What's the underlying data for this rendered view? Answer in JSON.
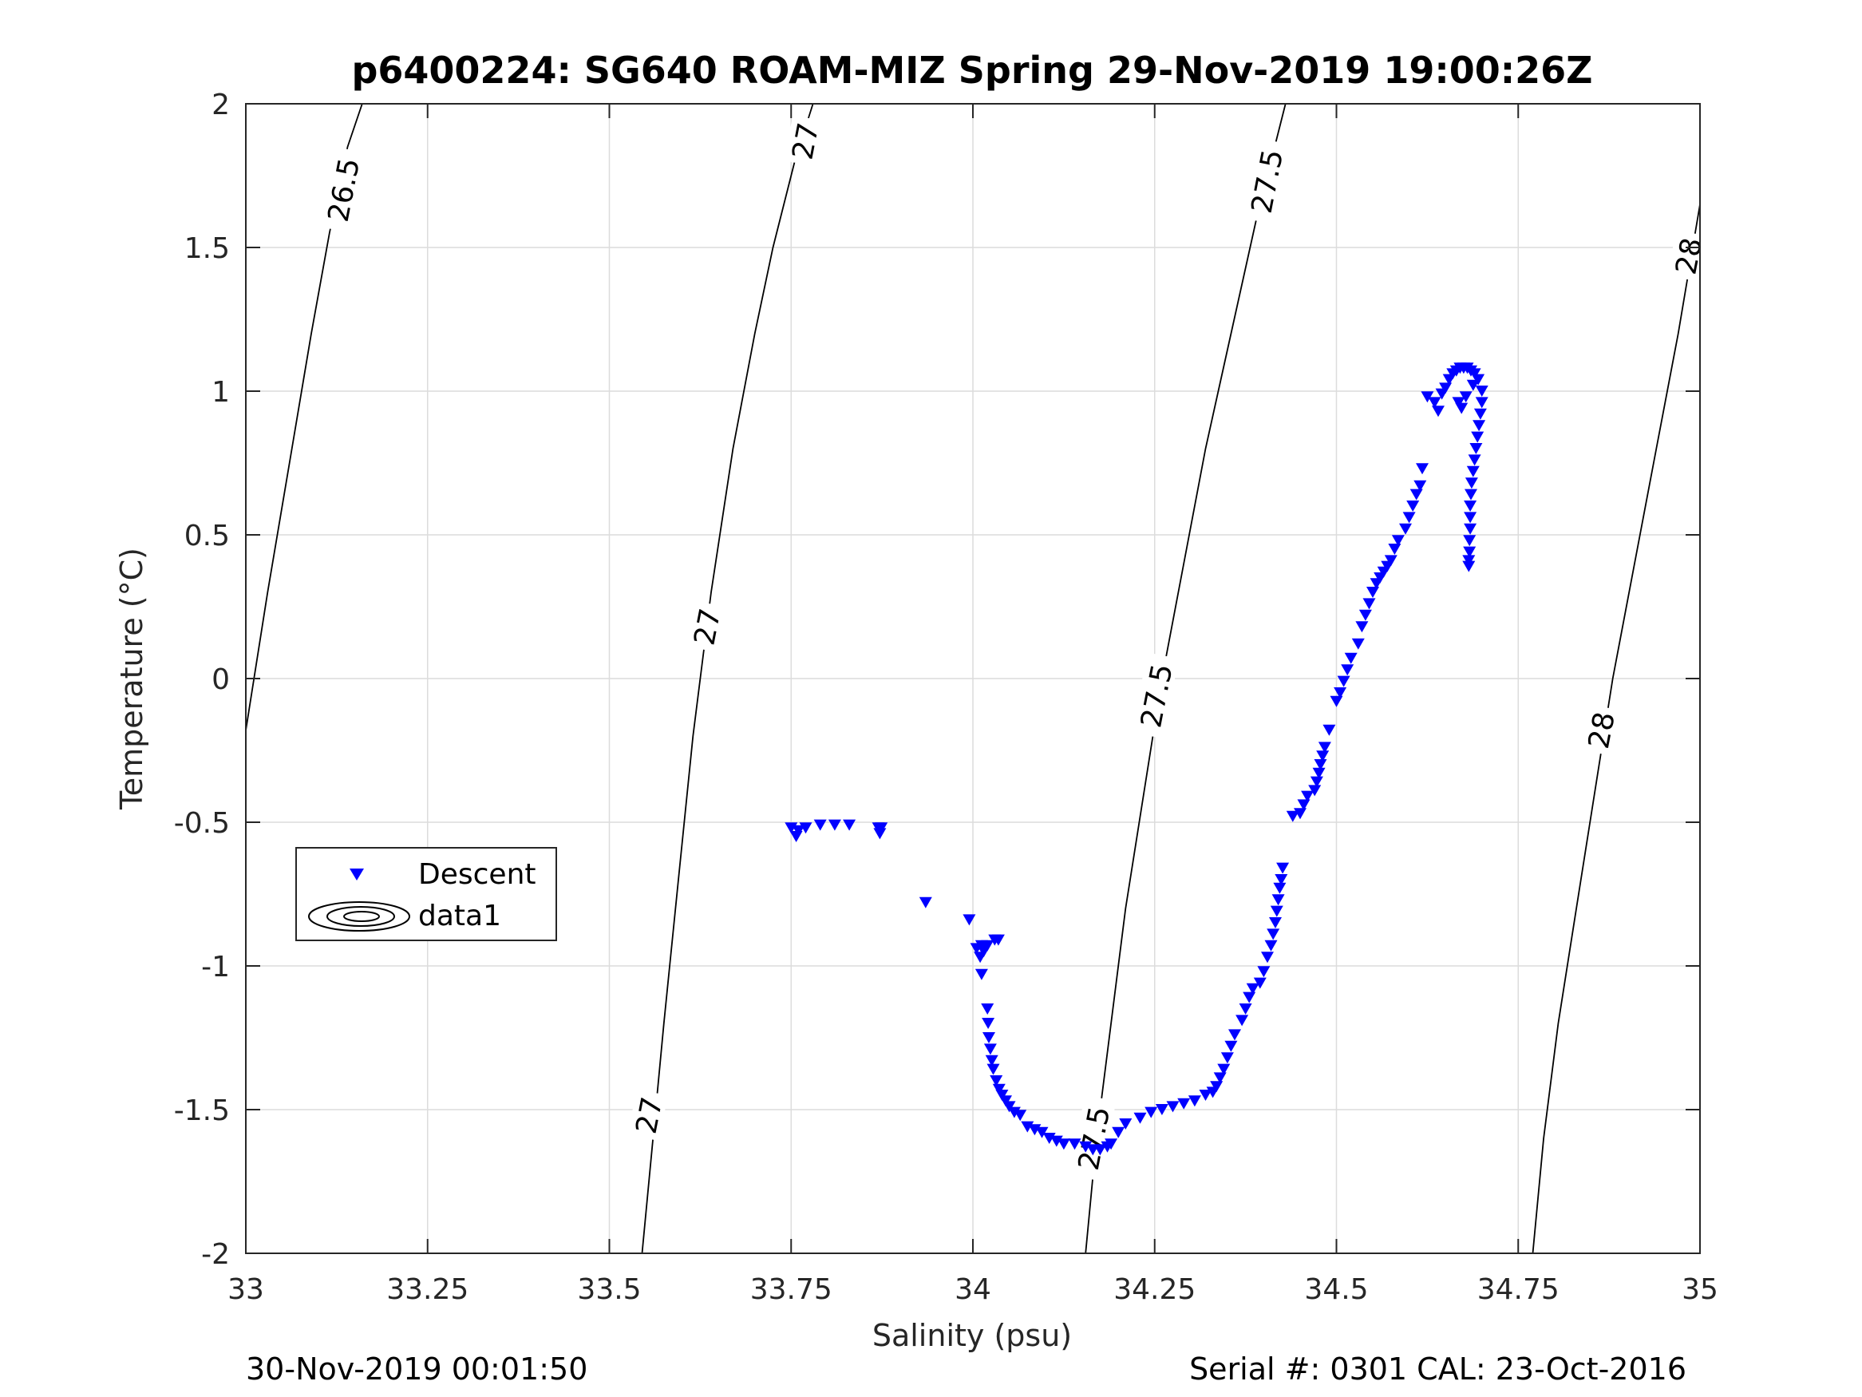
{
  "chart_data": {
    "type": "scatter",
    "title": "p6400224: SG640 ROAM-MIZ Spring 29-Nov-2019 19:00:26Z",
    "xlabel": "Salinity (psu)",
    "ylabel": "Temperature (°C)",
    "xlim": [
      33,
      35
    ],
    "ylim": [
      -2,
      2
    ],
    "x_ticks": [
      33,
      33.25,
      33.5,
      33.75,
      34,
      34.25,
      34.5,
      34.75,
      35
    ],
    "x_tick_labels": [
      "33",
      "33.25",
      "33.5",
      "33.75",
      "34",
      "34.25",
      "34.5",
      "34.75",
      "35"
    ],
    "y_ticks": [
      2,
      1.5,
      1,
      0.5,
      0,
      -0.5,
      -1,
      -1.5,
      -2
    ],
    "y_tick_labels": [
      "2",
      "1.5",
      "1",
      "0.5",
      "0",
      "-0.5",
      "-1",
      "-1.5",
      "-2"
    ],
    "grid": true,
    "legend_position": "left-middle",
    "footer_left": "30-Nov-2019 00:01:50",
    "footer_right": "Serial #: 0301  CAL: 23-Oct-2016",
    "series": [
      {
        "name": "Descent",
        "marker": "triangle-down",
        "color": "#0000ff",
        "points": [
          [
            33.75,
            -0.52
          ],
          [
            33.76,
            -0.53
          ],
          [
            33.757,
            -0.55
          ],
          [
            33.77,
            -0.52
          ],
          [
            33.79,
            -0.51
          ],
          [
            33.81,
            -0.51
          ],
          [
            33.83,
            -0.51
          ],
          [
            33.87,
            -0.52
          ],
          [
            33.872,
            -0.54
          ],
          [
            33.874,
            -0.52
          ],
          [
            33.935,
            -0.78
          ],
          [
            33.995,
            -0.84
          ],
          [
            34.005,
            -0.94
          ],
          [
            34.012,
            -0.93
          ],
          [
            34.015,
            -0.95
          ],
          [
            34.02,
            -0.93
          ],
          [
            34.03,
            -0.91
          ],
          [
            34.035,
            -0.91
          ],
          [
            34.01,
            -0.97
          ],
          [
            34.012,
            -1.03
          ],
          [
            34.02,
            -1.15
          ],
          [
            34.021,
            -1.2
          ],
          [
            34.022,
            -1.25
          ],
          [
            34.024,
            -1.29
          ],
          [
            34.026,
            -1.33
          ],
          [
            34.028,
            -1.36
          ],
          [
            34.032,
            -1.4
          ],
          [
            34.036,
            -1.43
          ],
          [
            34.04,
            -1.45
          ],
          [
            34.045,
            -1.47
          ],
          [
            34.05,
            -1.49
          ],
          [
            34.057,
            -1.51
          ],
          [
            34.065,
            -1.52
          ],
          [
            34.075,
            -1.56
          ],
          [
            34.085,
            -1.57
          ],
          [
            34.095,
            -1.58
          ],
          [
            34.105,
            -1.6
          ],
          [
            34.115,
            -1.61
          ],
          [
            34.125,
            -1.62
          ],
          [
            34.14,
            -1.62
          ],
          [
            34.155,
            -1.63
          ],
          [
            34.165,
            -1.64
          ],
          [
            34.175,
            -1.64
          ],
          [
            34.185,
            -1.63
          ],
          [
            34.19,
            -1.62
          ],
          [
            34.2,
            -1.58
          ],
          [
            34.21,
            -1.55
          ],
          [
            34.23,
            -1.53
          ],
          [
            34.245,
            -1.51
          ],
          [
            34.26,
            -1.5
          ],
          [
            34.275,
            -1.49
          ],
          [
            34.29,
            -1.48
          ],
          [
            34.305,
            -1.47
          ],
          [
            34.32,
            -1.45
          ],
          [
            34.33,
            -1.44
          ],
          [
            34.335,
            -1.42
          ],
          [
            34.34,
            -1.39
          ],
          [
            34.345,
            -1.36
          ],
          [
            34.35,
            -1.32
          ],
          [
            34.355,
            -1.28
          ],
          [
            34.36,
            -1.24
          ],
          [
            34.37,
            -1.19
          ],
          [
            34.375,
            -1.15
          ],
          [
            34.38,
            -1.11
          ],
          [
            34.385,
            -1.08
          ],
          [
            34.395,
            -1.06
          ],
          [
            34.4,
            -1.02
          ],
          [
            34.405,
            -0.97
          ],
          [
            34.41,
            -0.93
          ],
          [
            34.413,
            -0.89
          ],
          [
            34.416,
            -0.85
          ],
          [
            34.418,
            -0.81
          ],
          [
            34.42,
            -0.77
          ],
          [
            34.422,
            -0.73
          ],
          [
            34.424,
            -0.7
          ],
          [
            34.426,
            -0.66
          ],
          [
            34.44,
            -0.48
          ],
          [
            34.45,
            -0.47
          ],
          [
            34.455,
            -0.44
          ],
          [
            34.46,
            -0.41
          ],
          [
            34.47,
            -0.39
          ],
          [
            34.473,
            -0.36
          ],
          [
            34.476,
            -0.33
          ],
          [
            34.478,
            -0.3
          ],
          [
            34.481,
            -0.27
          ],
          [
            34.484,
            -0.24
          ],
          [
            34.49,
            -0.18
          ],
          [
            34.5,
            -0.08
          ],
          [
            34.505,
            -0.05
          ],
          [
            34.51,
            -0.01
          ],
          [
            34.515,
            0.03
          ],
          [
            34.52,
            0.07
          ],
          [
            34.53,
            0.12
          ],
          [
            34.535,
            0.18
          ],
          [
            34.54,
            0.22
          ],
          [
            34.545,
            0.26
          ],
          [
            34.55,
            0.3
          ],
          [
            34.555,
            0.33
          ],
          [
            34.56,
            0.35
          ],
          [
            34.565,
            0.37
          ],
          [
            34.57,
            0.39
          ],
          [
            34.575,
            0.41
          ],
          [
            34.58,
            0.45
          ],
          [
            34.585,
            0.48
          ],
          [
            34.595,
            0.52
          ],
          [
            34.6,
            0.56
          ],
          [
            34.605,
            0.6
          ],
          [
            34.61,
            0.64
          ],
          [
            34.615,
            0.67
          ],
          [
            34.618,
            0.73
          ],
          [
            34.625,
            0.98
          ],
          [
            34.635,
            0.96
          ],
          [
            34.64,
            0.93
          ],
          [
            34.645,
            0.99
          ],
          [
            34.65,
            1.01
          ],
          [
            34.655,
            1.04
          ],
          [
            34.66,
            1.06
          ],
          [
            34.665,
            1.07
          ],
          [
            34.67,
            1.08
          ],
          [
            34.675,
            1.08
          ],
          [
            34.68,
            1.08
          ],
          [
            34.685,
            1.07
          ],
          [
            34.69,
            1.06
          ],
          [
            34.695,
            1.04
          ],
          [
            34.7,
            1.0
          ],
          [
            34.7,
            0.96
          ],
          [
            34.698,
            0.92
          ],
          [
            34.696,
            0.88
          ],
          [
            34.694,
            0.84
          ],
          [
            34.692,
            0.8
          ],
          [
            34.69,
            0.76
          ],
          [
            34.688,
            0.72
          ],
          [
            34.686,
            0.68
          ],
          [
            34.685,
            0.64
          ],
          [
            34.684,
            0.6
          ],
          [
            34.684,
            0.56
          ],
          [
            34.684,
            0.52
          ],
          [
            34.683,
            0.48
          ],
          [
            34.683,
            0.44
          ],
          [
            34.682,
            0.41
          ],
          [
            34.682,
            0.39
          ],
          [
            34.668,
            0.96
          ],
          [
            34.672,
            0.94
          ],
          [
            34.678,
            0.98
          ],
          [
            34.688,
            1.02
          ]
        ]
      },
      {
        "name": "data1",
        "marker": "contour"
      }
    ],
    "isopycnals": [
      {
        "sigma": "26.5",
        "points": [
          [
            33.0,
            -0.18
          ],
          [
            33.03,
            0.3
          ],
          [
            33.06,
            0.75
          ],
          [
            33.09,
            1.2
          ],
          [
            33.115,
            1.55
          ],
          [
            33.14,
            1.85
          ],
          [
            33.16,
            2.0
          ]
        ]
      },
      {
        "sigma": "27",
        "points": [
          [
            33.545,
            -2.0
          ],
          [
            33.56,
            -1.6
          ],
          [
            33.575,
            -1.2
          ],
          [
            33.595,
            -0.7
          ],
          [
            33.615,
            -0.2
          ],
          [
            33.64,
            0.3
          ],
          [
            33.67,
            0.8
          ],
          [
            33.7,
            1.2
          ],
          [
            33.725,
            1.5
          ],
          [
            33.755,
            1.8
          ],
          [
            33.78,
            2.0
          ]
        ]
      },
      {
        "sigma": "27.5",
        "points": [
          [
            34.155,
            -2.0
          ],
          [
            34.17,
            -1.6
          ],
          [
            34.19,
            -1.2
          ],
          [
            34.21,
            -0.8
          ],
          [
            34.235,
            -0.4
          ],
          [
            34.26,
            0.0
          ],
          [
            34.29,
            0.4
          ],
          [
            34.32,
            0.8
          ],
          [
            34.355,
            1.2
          ],
          [
            34.39,
            1.6
          ],
          [
            34.41,
            1.8
          ],
          [
            34.43,
            2.0
          ]
        ]
      },
      {
        "sigma": "28",
        "points": [
          [
            34.77,
            -2.0
          ],
          [
            34.785,
            -1.6
          ],
          [
            34.805,
            -1.2
          ],
          [
            34.83,
            -0.8
          ],
          [
            34.855,
            -0.4
          ],
          [
            34.88,
            0.0
          ],
          [
            34.91,
            0.4
          ],
          [
            34.94,
            0.8
          ],
          [
            34.97,
            1.2
          ],
          [
            35.0,
            1.65
          ]
        ]
      }
    ],
    "contour_labels": [
      {
        "text": "26.5",
        "at": [
          33.135,
          1.7
        ]
      },
      {
        "text": "27",
        "at": [
          33.77,
          1.87
        ]
      },
      {
        "text": "27",
        "at": [
          33.635,
          0.18
        ]
      },
      {
        "text": "27",
        "at": [
          33.555,
          -1.52
        ]
      },
      {
        "text": "27.5",
        "at": [
          34.405,
          1.73
        ]
      },
      {
        "text": "27.5",
        "at": [
          34.253,
          -0.06
        ]
      },
      {
        "text": "27.5",
        "at": [
          34.167,
          -1.6
        ]
      },
      {
        "text": "28",
        "at": [
          34.985,
          1.47
        ]
      },
      {
        "text": "28",
        "at": [
          34.865,
          -0.18
        ]
      }
    ]
  }
}
